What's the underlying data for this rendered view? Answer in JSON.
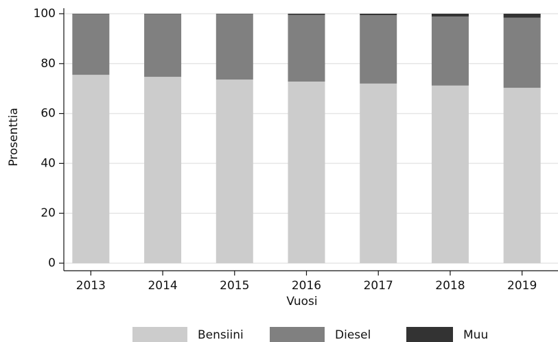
{
  "chart_data": {
    "type": "stacked_bar",
    "categories": [
      "2013",
      "2014",
      "2015",
      "2016",
      "2017",
      "2018",
      "2019"
    ],
    "series": [
      {
        "name": "Bensiini",
        "color": "#cccccc",
        "values": [
          75.5,
          74.7,
          73.6,
          72.8,
          72.0,
          71.2,
          70.3
        ]
      },
      {
        "name": "Diesel",
        "color": "#808080",
        "values": [
          24.4,
          25.2,
          26.3,
          26.7,
          27.4,
          27.7,
          28.1
        ]
      },
      {
        "name": "Muu",
        "color": "#333333",
        "values": [
          0.1,
          0.1,
          0.1,
          0.5,
          0.6,
          1.1,
          1.6
        ]
      }
    ],
    "ylim": [
      0,
      100
    ],
    "yticks": [
      0,
      20,
      40,
      60,
      80,
      100
    ],
    "grid": true,
    "ylabel": "Prosenttia",
    "xlabel": "Vuosi",
    "legend": "bottom"
  }
}
